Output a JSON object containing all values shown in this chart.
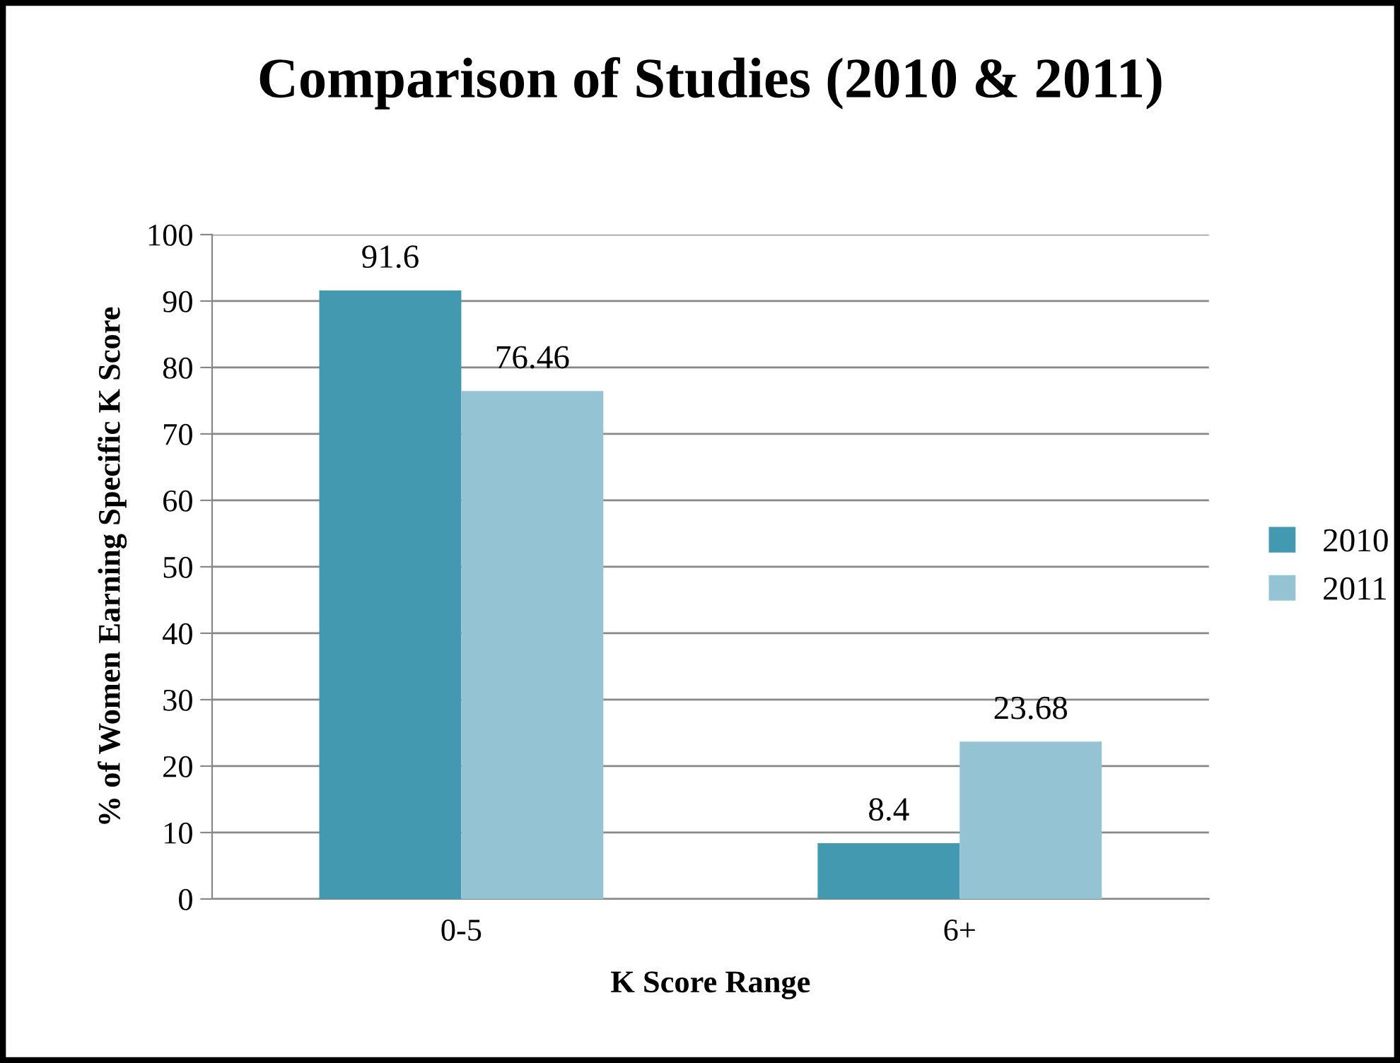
{
  "chart_data": {
    "type": "bar",
    "title": "Comparison of Studies (2010 & 2011)",
    "xlabel": "K Score Range",
    "ylabel": "% of Women Earning Specific K Score",
    "categories": [
      "0-5",
      "6+"
    ],
    "series": [
      {
        "name": "2010",
        "color": "#4299b0",
        "values": [
          91.6,
          8.4
        ]
      },
      {
        "name": "2011",
        "color": "#94c4d4",
        "values": [
          76.46,
          23.68
        ]
      }
    ],
    "ylim": [
      0,
      100
    ],
    "yticks": [
      0,
      10,
      20,
      30,
      40,
      50,
      60,
      70,
      80,
      90,
      100
    ],
    "grid": "y",
    "legend": "right",
    "data_labels": true
  }
}
